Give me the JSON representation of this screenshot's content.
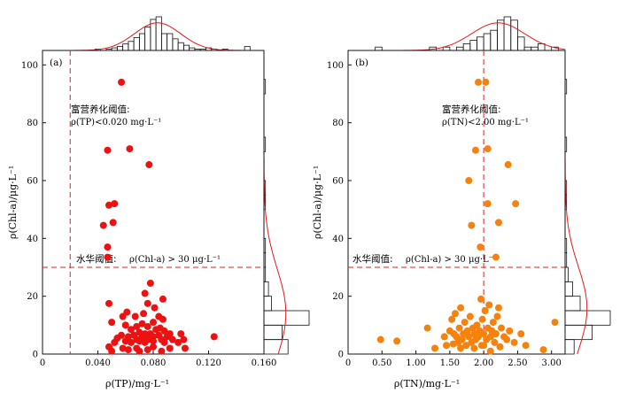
{
  "chart_data": [
    {
      "type": "scatter",
      "panel_label": "(a)",
      "xlabel": "ρ(TP)/mg·L⁻¹",
      "ylabel": "ρ(Chl-a)/μg·L⁻¹",
      "xlim": [
        0.0,
        0.16
      ],
      "ylim": [
        0,
        105
      ],
      "xticks": [
        0.04,
        0.08,
        0.12,
        0.16
      ],
      "xtick_labels": [
        "0.040",
        "0.080",
        "0.120",
        "0.160"
      ],
      "x0_label": "0",
      "yticks": [
        0,
        20,
        40,
        60,
        80,
        100
      ],
      "ytick_labels": [
        "0",
        "20",
        "40",
        "60",
        "80",
        "100"
      ],
      "color": "#ee1111",
      "threshold_x": 0.02,
      "threshold_y": 30,
      "threshold_color": "#dd2222",
      "annotation_line1": "富营养化阈值:",
      "annotation_line2": "ρ(TP)<0.020 mg·L⁻¹",
      "bloom_label_zh": "水华阈值:",
      "bloom_label": "ρ(Chl-a) > 30 μg·L⁻¹",
      "points": [
        [
          0.057,
          94
        ],
        [
          0.047,
          70.5
        ],
        [
          0.063,
          71
        ],
        [
          0.077,
          65.5
        ],
        [
          0.052,
          52
        ],
        [
          0.048,
          51.5
        ],
        [
          0.051,
          45.5
        ],
        [
          0.044,
          44.5
        ],
        [
          0.047,
          37
        ],
        [
          0.047,
          33.5
        ],
        [
          0.078,
          24.5
        ],
        [
          0.074,
          21
        ],
        [
          0.087,
          19
        ],
        [
          0.048,
          17.5
        ],
        [
          0.076,
          17.5
        ],
        [
          0.081,
          16
        ],
        [
          0.061,
          14.5
        ],
        [
          0.073,
          14
        ],
        [
          0.058,
          13
        ],
        [
          0.067,
          13
        ],
        [
          0.084,
          13
        ],
        [
          0.087,
          12
        ],
        [
          0.05,
          11
        ],
        [
          0.08,
          11
        ],
        [
          0.072,
          10.5
        ],
        [
          0.06,
          10
        ],
        [
          0.068,
          9.5
        ],
        [
          0.076,
          9.5
        ],
        [
          0.085,
          9
        ],
        [
          0.064,
          8.5
        ],
        [
          0.082,
          8.5
        ],
        [
          0.088,
          8
        ],
        [
          0.07,
          7.5
        ],
        [
          0.074,
          7
        ],
        [
          0.078,
          7
        ],
        [
          0.092,
          7
        ],
        [
          0.1,
          7
        ],
        [
          0.057,
          6.5
        ],
        [
          0.066,
          6.5
        ],
        [
          0.084,
          6.5
        ],
        [
          0.124,
          6
        ],
        [
          0.062,
          6
        ],
        [
          0.072,
          6
        ],
        [
          0.08,
          6
        ],
        [
          0.09,
          6
        ],
        [
          0.054,
          5.5
        ],
        [
          0.068,
          5
        ],
        [
          0.076,
          5
        ],
        [
          0.086,
          5
        ],
        [
          0.094,
          5
        ],
        [
          0.102,
          5
        ],
        [
          0.06,
          4.5
        ],
        [
          0.07,
          4.5
        ],
        [
          0.08,
          4.5
        ],
        [
          0.052,
          4
        ],
        [
          0.064,
          4
        ],
        [
          0.074,
          4
        ],
        [
          0.088,
          4
        ],
        [
          0.098,
          4
        ],
        [
          0.048,
          2.5
        ],
        [
          0.058,
          2
        ],
        [
          0.068,
          2
        ],
        [
          0.08,
          2.5
        ],
        [
          0.092,
          2
        ],
        [
          0.103,
          2
        ],
        [
          0.062,
          1.5
        ],
        [
          0.076,
          1.5
        ],
        [
          0.05,
          1
        ],
        [
          0.07,
          1
        ],
        [
          0.086,
          1
        ]
      ],
      "top_histogram": {
        "bin_start": 0.038,
        "bin_width": 0.004,
        "counts": [
          1,
          0,
          1,
          2,
          3,
          5,
          7,
          10,
          13,
          18,
          24,
          26,
          13,
          13,
          9,
          6,
          4,
          2,
          1,
          1,
          2,
          1,
          0,
          1,
          0,
          0,
          0,
          3
        ]
      },
      "right_histogram": {
        "bin_start": 0,
        "bin_width": 5,
        "counts": [
          16,
          12,
          30,
          5,
          3,
          1,
          1,
          1,
          0,
          0,
          1,
          1,
          0,
          0,
          1,
          0,
          0,
          0,
          1,
          0
        ]
      }
    },
    {
      "type": "scatter",
      "panel_label": "(b)",
      "xlabel": "ρ(TN)/mg·L⁻¹",
      "ylabel": "ρ(Chl-a)/μg·L⁻¹",
      "xlim": [
        0.0,
        3.2
      ],
      "ylim": [
        0,
        105
      ],
      "xticks": [
        0.5,
        1.0,
        1.5,
        2.0,
        2.5,
        3.0
      ],
      "xtick_labels": [
        "0.50",
        "1.00",
        "1.50",
        "2.00",
        "2.50",
        "3.00"
      ],
      "x0_label": "0",
      "yticks": [
        0,
        20,
        40,
        60,
        80,
        100
      ],
      "ytick_labels": [
        "0",
        "20",
        "40",
        "60",
        "80",
        "100"
      ],
      "color": "#f5820d",
      "threshold_x": 2.0,
      "threshold_y": 30,
      "threshold_color": "#dd2222",
      "annotation_line1": "富营养化阈值:",
      "annotation_line2": "ρ(TN)<2.00 mg·L⁻¹",
      "bloom_label_zh": "水华阈值:",
      "bloom_label": "ρ(Chl-a) > 30 μg·L⁻¹",
      "points": [
        [
          1.92,
          94
        ],
        [
          2.03,
          94
        ],
        [
          1.88,
          70.5
        ],
        [
          2.06,
          71
        ],
        [
          2.36,
          65.5
        ],
        [
          1.78,
          60
        ],
        [
          2.06,
          52
        ],
        [
          2.47,
          52
        ],
        [
          2.22,
          45.5
        ],
        [
          1.82,
          44.5
        ],
        [
          1.95,
          37
        ],
        [
          2.18,
          33.5
        ],
        [
          0.48,
          5
        ],
        [
          0.72,
          4.5
        ],
        [
          1.28,
          2
        ],
        [
          1.17,
          9
        ],
        [
          1.42,
          6
        ],
        [
          1.45,
          3
        ],
        [
          1.5,
          8
        ],
        [
          1.53,
          12
        ],
        [
          1.56,
          7
        ],
        [
          1.58,
          14
        ],
        [
          1.6,
          6
        ],
        [
          1.62,
          4
        ],
        [
          1.64,
          9
        ],
        [
          1.66,
          16
        ],
        [
          1.68,
          5
        ],
        [
          1.7,
          7
        ],
        [
          1.72,
          11
        ],
        [
          1.74,
          3
        ],
        [
          1.76,
          8
        ],
        [
          1.78,
          6
        ],
        [
          1.8,
          13
        ],
        [
          1.82,
          4
        ],
        [
          1.84,
          9
        ],
        [
          1.86,
          7
        ],
        [
          1.88,
          5
        ],
        [
          1.9,
          10
        ],
        [
          1.92,
          6
        ],
        [
          1.94,
          8
        ],
        [
          1.96,
          19
        ],
        [
          1.97,
          3
        ],
        [
          1.98,
          12
        ],
        [
          2.0,
          7
        ],
        [
          2.02,
          15
        ],
        [
          2.04,
          5
        ],
        [
          2.06,
          9
        ],
        [
          2.08,
          17
        ],
        [
          2.1,
          6
        ],
        [
          2.12,
          8
        ],
        [
          2.14,
          11
        ],
        [
          2.16,
          4
        ],
        [
          2.18,
          7
        ],
        [
          2.2,
          13
        ],
        [
          2.22,
          16
        ],
        [
          2.26,
          9
        ],
        [
          2.3,
          6
        ],
        [
          2.34,
          5
        ],
        [
          2.38,
          8
        ],
        [
          2.45,
          4
        ],
        [
          2.55,
          7
        ],
        [
          2.62,
          3
        ],
        [
          2.88,
          1.5
        ],
        [
          3.05,
          11
        ],
        [
          1.66,
          2
        ],
        [
          1.86,
          2
        ],
        [
          2.1,
          1
        ],
        [
          1.55,
          3.5
        ],
        [
          2.0,
          3
        ],
        [
          2.24,
          2.5
        ]
      ],
      "top_histogram": {
        "bin_start": 0.0,
        "bin_width": 0.1,
        "counts": [
          0,
          0,
          0,
          0,
          1,
          0,
          0,
          0,
          0,
          0,
          0,
          0,
          1,
          0,
          1,
          0,
          1,
          2,
          3,
          4,
          5,
          6,
          9,
          10,
          9,
          4,
          1,
          1,
          2,
          0,
          1,
          0
        ]
      },
      "right_histogram": {
        "bin_start": 0,
        "bin_width": 5,
        "counts": [
          6,
          18,
          30,
          10,
          5,
          2,
          1,
          1,
          0,
          0,
          1,
          1,
          0,
          0,
          1,
          0,
          0,
          0,
          1,
          0
        ]
      }
    }
  ]
}
